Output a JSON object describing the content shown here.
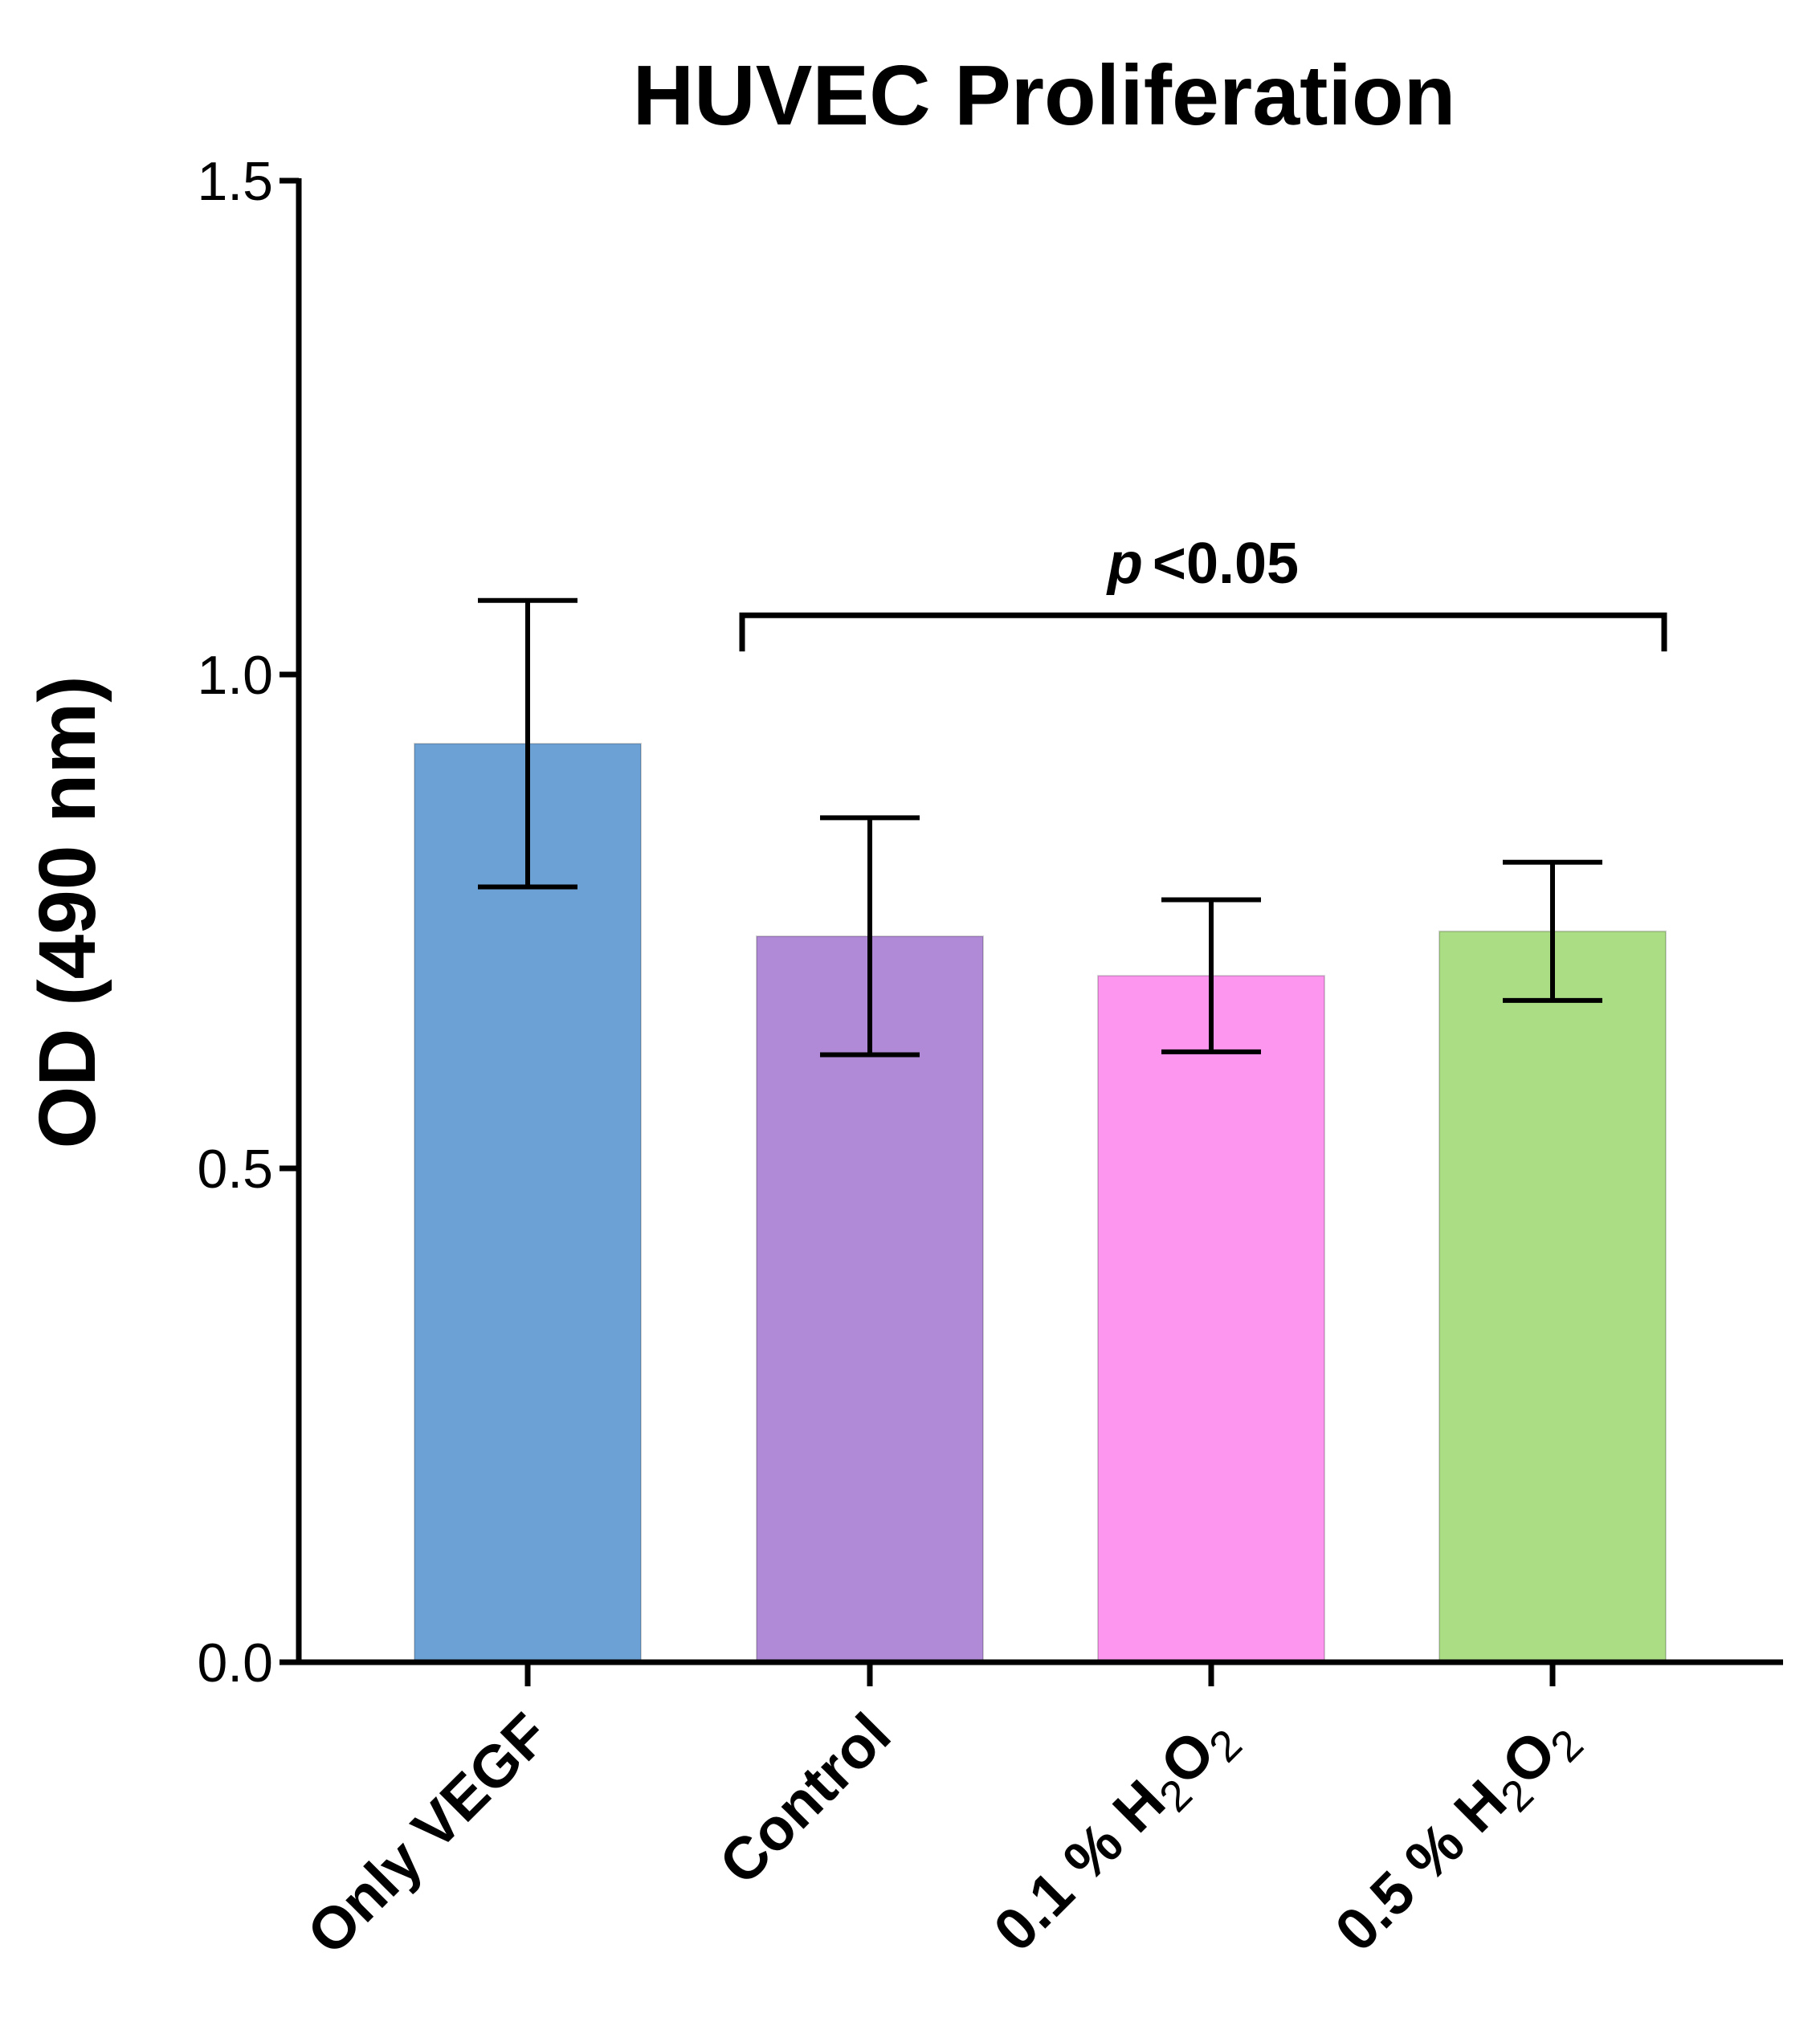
{
  "chart_data": {
    "type": "bar",
    "title": "HUVEC Proliferation",
    "xlabel": "",
    "ylabel": "OD (490 nm)",
    "ylim": [
      0,
      1.5
    ],
    "yticks": [
      "0.0",
      "0.5",
      "1.0",
      "1.5"
    ],
    "grid": false,
    "categories": [
      {
        "label": "Only VEGF",
        "prefix": "Only VEGF",
        "formula": false
      },
      {
        "label": "Control",
        "prefix": "Control",
        "formula": false
      },
      {
        "label": "0.1 % H2O2",
        "prefix": "0.1 % ",
        "formula": true
      },
      {
        "label": "0.5 % H2O2",
        "prefix": "0.5 % ",
        "formula": true
      }
    ],
    "values": [
      0.93,
      0.735,
      0.695,
      0.74
    ],
    "errors": [
      0.145,
      0.12,
      0.077,
      0.07
    ],
    "colors": [
      "#6CA1D6",
      "#B08AD7",
      "#FC96EE",
      "#AADD84"
    ],
    "significance": {
      "text_p": "p",
      "text_rest": "<0.05",
      "from_category": 1,
      "to_category": 3,
      "y": 1.06
    }
  }
}
